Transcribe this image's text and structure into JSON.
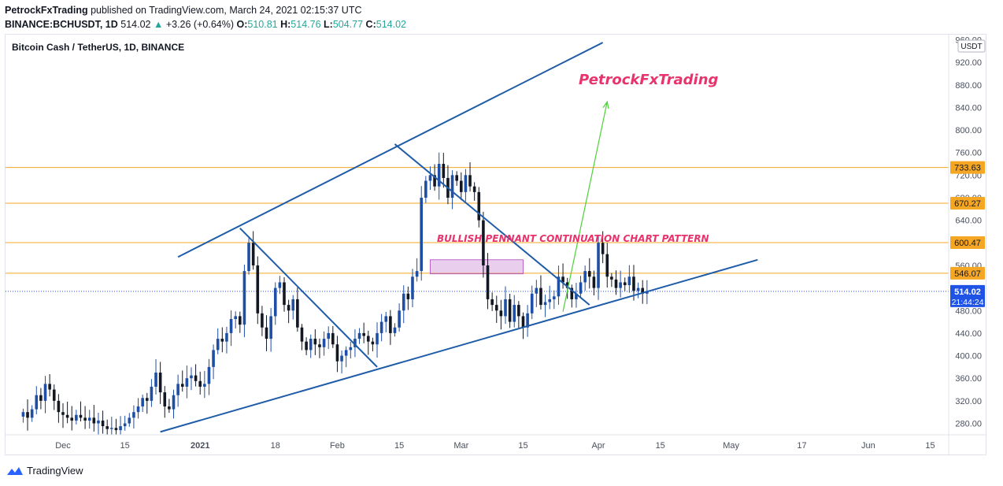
{
  "header": {
    "author": "PetrockFxTrading",
    "published": "published on TradingView.com, March 24, 2021 02:15:37 UTC",
    "symbol": "BINANCE:BCHUSDT, 1D",
    "last": "514.02",
    "change": "+3.26 (+0.64%)",
    "o_label": "O:",
    "o": "510.81",
    "h_label": "H:",
    "h": "514.76",
    "l_label": "L:",
    "l": "504.77",
    "c_label": "C:",
    "c": "514.02"
  },
  "chart_title": "Bitcoin Cash / TetherUS, 1D, BINANCE",
  "watermark": "PetrockFxTrading",
  "pattern_label": "BULLISH PENNANT CONTINUATION CHART PATTERN",
  "currency_badge": "USDT",
  "last_price_label": "514.02",
  "countdown_label": "21:44:24",
  "footer": {
    "brand": "TradingView"
  },
  "colors": {
    "up": "#26a69a",
    "down": "#131722",
    "candle_up": "#1e4fa5",
    "trendline": "#1f5ca8",
    "level": "#f5a623",
    "arrow": "#4cd137",
    "pattern_text": "#e8336d",
    "zone": "#ce93d8"
  },
  "chart_data": {
    "type": "candlestick",
    "title": "Bitcoin Cash / TetherUS, 1D, BINANCE",
    "y_ticks": [
      "960.00",
      "920.00",
      "880.00",
      "840.00",
      "800.00",
      "760.00",
      "720.00",
      "680.00",
      "640.00",
      "600.00",
      "560.00",
      "520.00",
      "480.00",
      "440.00",
      "400.00",
      "360.00",
      "320.00",
      "280.00"
    ],
    "y_tick_values": [
      960,
      920,
      880,
      840,
      800,
      760,
      720,
      680,
      640,
      600,
      560,
      520,
      480,
      440,
      400,
      360,
      320,
      280
    ],
    "x_ticks": [
      "Dec",
      "15",
      "2021",
      "18",
      "Feb",
      "15",
      "Mar",
      "15",
      "Apr",
      "15",
      "May",
      "17",
      "Jun",
      "15"
    ],
    "x_tick_dates": [
      "2020-12-01",
      "2020-12-15",
      "2021-01-01",
      "2021-01-18",
      "2021-02-01",
      "2021-02-15",
      "2021-03-01",
      "2021-03-15",
      "2021-04-01",
      "2021-04-15",
      "2021-05-01",
      "2021-05-17",
      "2021-06-01",
      "2021-06-15"
    ],
    "price_levels": [
      {
        "label": "733.63",
        "value": 733.63
      },
      {
        "label": "670.27",
        "value": 670.27
      },
      {
        "label": "600.47",
        "value": 600.47
      },
      {
        "label": "546.07",
        "value": 546.07
      }
    ],
    "last_price": 514.02,
    "first_date": "2020-11-22",
    "closes": [
      300,
      290,
      305,
      330,
      320,
      350,
      340,
      320,
      300,
      295,
      290,
      285,
      295,
      290,
      285,
      290,
      280,
      285,
      275,
      270,
      272,
      268,
      275,
      280,
      290,
      300,
      310,
      325,
      320,
      345,
      370,
      335,
      310,
      305,
      330,
      350,
      345,
      360,
      365,
      355,
      345,
      350,
      380,
      410,
      430,
      425,
      440,
      465,
      470,
      455,
      550,
      600,
      560,
      475,
      450,
      430,
      470,
      520,
      530,
      490,
      480,
      500,
      450,
      425,
      410,
      430,
      420,
      415,
      430,
      440,
      420,
      390,
      400,
      410,
      415,
      430,
      440,
      435,
      425,
      420,
      440,
      460,
      470,
      440,
      450,
      480,
      510,
      500,
      540,
      550,
      680,
      710,
      720,
      700,
      740,
      715,
      680,
      720,
      710,
      690,
      720,
      700,
      690,
      640,
      560,
      500,
      490,
      480,
      470,
      500,
      460,
      490,
      470,
      450,
      475,
      510,
      520,
      490,
      495,
      500,
      505,
      540,
      530,
      520,
      500,
      510,
      530,
      550,
      540,
      520,
      600,
      580,
      540,
      535,
      520,
      530,
      525,
      540,
      515,
      520,
      510,
      514
    ],
    "trendlines": [
      {
        "name": "upper channel",
        "from": {
          "date": "2020-12-27",
          "price": 575
        },
        "to": {
          "date": "2021-04-02",
          "price": 955
        }
      },
      {
        "name": "lower channel",
        "from": {
          "date": "2020-12-23",
          "price": 265
        },
        "to": {
          "date": "2021-05-07",
          "price": 570
        }
      },
      {
        "name": "flag 1",
        "from": {
          "date": "2021-01-10",
          "price": 626
        },
        "to": {
          "date": "2021-02-10",
          "price": 380
        }
      },
      {
        "name": "pennant top",
        "from": {
          "date": "2021-02-14",
          "price": 775
        },
        "to": {
          "date": "2021-03-30",
          "price": 490
        }
      },
      {
        "name": "target arrow",
        "from": {
          "date": "2021-03-24",
          "price": 478
        },
        "to": {
          "date": "2021-04-03",
          "price": 850
        }
      }
    ],
    "zone": {
      "from": "2021-02-22",
      "to": "2021-03-15",
      "top": 570,
      "bottom": 545
    }
  }
}
